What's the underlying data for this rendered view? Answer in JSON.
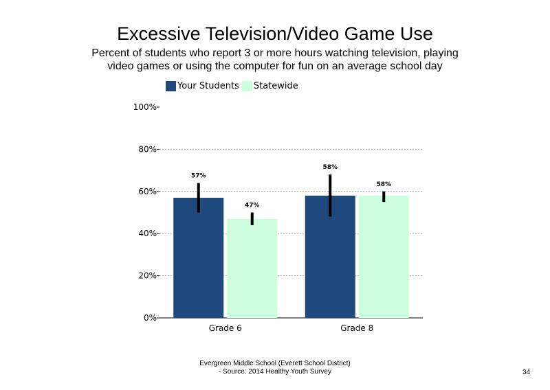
{
  "chart_data": {
    "type": "bar",
    "title": "Excessive Television/Video Game Use",
    "subtitle": "Percent of students who report 3 or more hours watching television, playing video games or using the computer for fun on an average school day",
    "categories": [
      "Grade 6",
      "Grade 8"
    ],
    "series": [
      {
        "name": "Your Students",
        "color": "#1f497d",
        "values": [
          57,
          58
        ],
        "labels": [
          "57%",
          "58%"
        ],
        "error_low": [
          50,
          48
        ],
        "error_high": [
          64,
          68
        ]
      },
      {
        "name": "Statewide",
        "color": "#ccffdd",
        "values": [
          47,
          58
        ],
        "labels": [
          "47%",
          "58%"
        ],
        "error_low": [
          44,
          55
        ],
        "error_high": [
          50,
          60
        ]
      }
    ],
    "ylim": [
      0,
      100
    ],
    "yticks": [
      0,
      20,
      40,
      60,
      80,
      100
    ],
    "ytick_labels": [
      "0%",
      "20%",
      "40%",
      "60%",
      "80%",
      "100%"
    ],
    "xlabel": "",
    "ylabel": "",
    "grid": true,
    "legend_position": "top-left"
  },
  "footer": {
    "line1": "Evergreen Middle School (Everett School District)",
    "line2": "- Source: 2014 Healthy  Youth Survey"
  },
  "page_number": "34"
}
